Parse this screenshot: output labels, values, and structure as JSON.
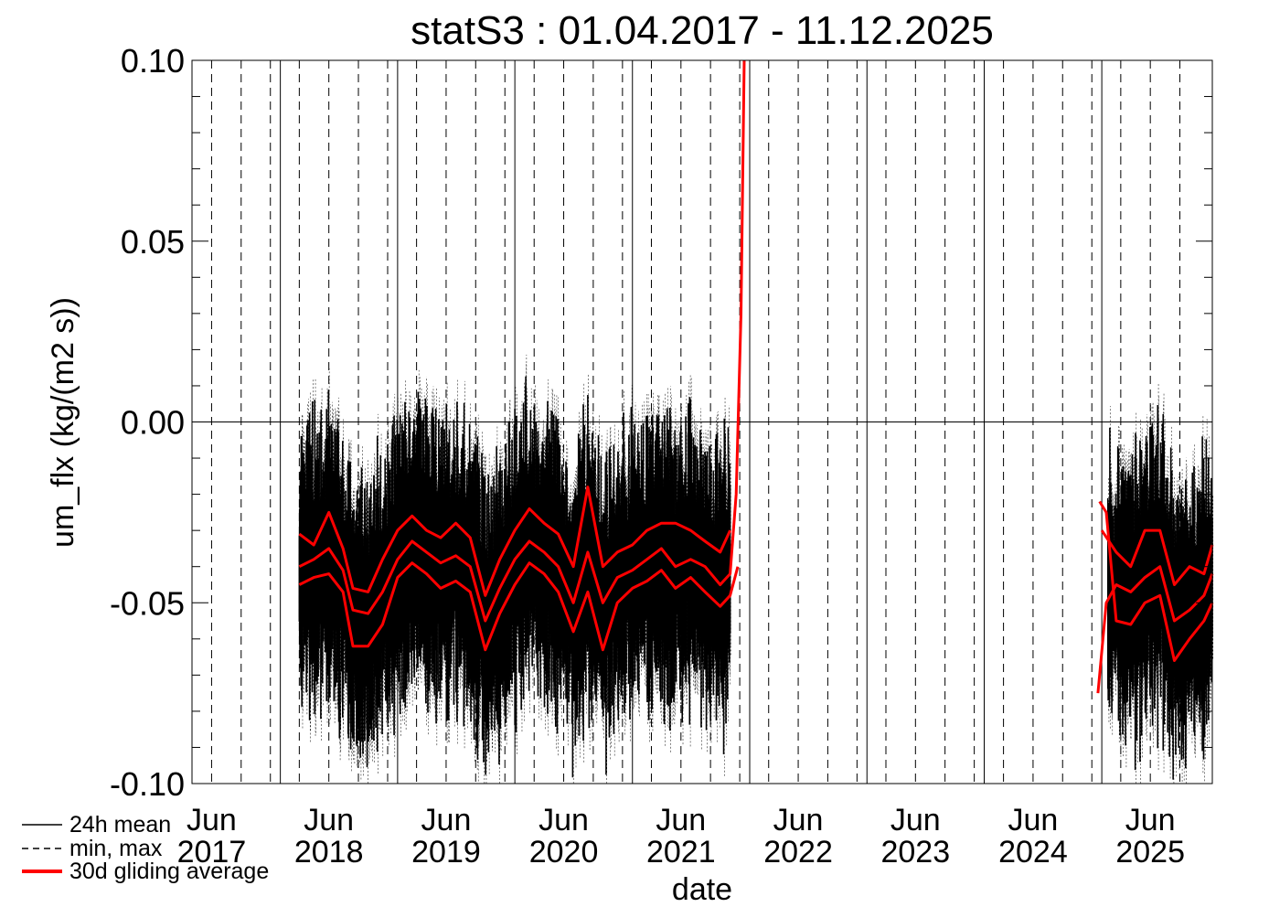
{
  "chart_data": {
    "type": "line",
    "title": "statS3 : 01.04.2017 - 11.12.2025",
    "xlabel": "date",
    "ylabel": "um_flx (kg/(m2 s))",
    "x_range": [
      "2017-04-01",
      "2025-12-11"
    ],
    "ylim": [
      -0.1,
      0.1
    ],
    "y_ticks": [
      {
        "value": 0.1,
        "label": "0.10"
      },
      {
        "value": 0.05,
        "label": "0.05"
      },
      {
        "value": 0.0,
        "label": "0.00"
      },
      {
        "value": -0.05,
        "label": "-0.05"
      },
      {
        "value": -0.1,
        "label": "-0.10"
      }
    ],
    "x_ticks": [
      {
        "date": "2017-06-01",
        "month": "Jun",
        "year": "2017"
      },
      {
        "date": "2018-06-01",
        "month": "Jun",
        "year": "2018"
      },
      {
        "date": "2019-06-01",
        "month": "Jun",
        "year": "2019"
      },
      {
        "date": "2020-06-01",
        "month": "Jun",
        "year": "2020"
      },
      {
        "date": "2021-06-01",
        "month": "Jun",
        "year": "2021"
      },
      {
        "date": "2022-06-01",
        "month": "Jun",
        "year": "2022"
      },
      {
        "date": "2023-06-01",
        "month": "Jun",
        "year": "2023"
      },
      {
        "date": "2024-06-01",
        "month": "Jun",
        "year": "2024"
      },
      {
        "date": "2025-06-01",
        "month": "Jun",
        "year": "2025"
      }
    ],
    "year_boundaries": [
      "2018-01-01",
      "2019-01-01",
      "2020-01-01",
      "2021-01-01",
      "2022-01-01",
      "2023-01-01",
      "2024-01-01",
      "2025-01-01"
    ],
    "season_lines": [
      "2017-06-01",
      "2017-09-01",
      "2017-12-01",
      "2018-03-01",
      "2018-06-01",
      "2018-09-01",
      "2018-12-01",
      "2019-03-01",
      "2019-06-01",
      "2019-09-01",
      "2019-12-01",
      "2020-03-01",
      "2020-06-01",
      "2020-09-01",
      "2020-12-01",
      "2021-03-01",
      "2021-06-01",
      "2021-09-01",
      "2021-12-01",
      "2022-03-01",
      "2022-06-01",
      "2022-09-01",
      "2022-12-01",
      "2023-03-01",
      "2023-06-01",
      "2023-09-01",
      "2023-12-01",
      "2024-03-01",
      "2024-06-01",
      "2024-09-01",
      "2024-12-01",
      "2025-03-01",
      "2025-06-01",
      "2025-09-01"
    ],
    "zero_line": 0.0,
    "legend": [
      {
        "label": "24h mean",
        "style": "solid",
        "color": "#000000"
      },
      {
        "label": "min, max",
        "style": "dashed",
        "color": "#000000"
      },
      {
        "label": "30d gliding average",
        "style": "thick",
        "color": "#ff0000"
      }
    ],
    "legend_position": "bottom-left, below plot",
    "series": [
      {
        "name": "30d gliding average",
        "color": "#ff0000",
        "segments": [
          [
            [
              "2018-03-01",
              -0.04
            ],
            [
              "2018-04-15",
              -0.038
            ],
            [
              "2018-06-01",
              -0.035
            ],
            [
              "2018-07-15",
              -0.041
            ],
            [
              "2018-08-15",
              -0.052
            ],
            [
              "2018-10-01",
              -0.053
            ],
            [
              "2018-11-15",
              -0.047
            ],
            [
              "2019-01-01",
              -0.038
            ],
            [
              "2019-02-15",
              -0.033
            ],
            [
              "2019-04-01",
              -0.036
            ],
            [
              "2019-05-15",
              -0.039
            ],
            [
              "2019-07-01",
              -0.037
            ],
            [
              "2019-08-15",
              -0.04
            ],
            [
              "2019-10-01",
              -0.055
            ],
            [
              "2019-11-15",
              -0.046
            ],
            [
              "2020-01-01",
              -0.038
            ],
            [
              "2020-02-15",
              -0.033
            ],
            [
              "2020-04-01",
              -0.036
            ],
            [
              "2020-05-15",
              -0.04
            ],
            [
              "2020-07-01",
              -0.05
            ],
            [
              "2020-08-15",
              -0.036
            ],
            [
              "2020-10-01",
              -0.05
            ],
            [
              "2020-11-15",
              -0.043
            ],
            [
              "2021-01-01",
              -0.041
            ],
            [
              "2021-02-15",
              -0.038
            ],
            [
              "2021-04-01",
              -0.035
            ],
            [
              "2021-05-15",
              -0.04
            ],
            [
              "2021-07-01",
              -0.038
            ],
            [
              "2021-08-15",
              -0.04
            ],
            [
              "2021-10-01",
              -0.045
            ],
            [
              "2021-11-01",
              -0.042
            ],
            [
              "2021-11-20",
              -0.02
            ],
            [
              "2021-12-05",
              0.03
            ],
            [
              "2021-12-15",
              0.1
            ]
          ],
          [
            [
              "2024-12-20",
              -0.075
            ],
            [
              "2025-01-15",
              -0.05
            ],
            [
              "2025-02-15",
              -0.045
            ],
            [
              "2025-04-01",
              -0.047
            ],
            [
              "2025-05-15",
              -0.043
            ],
            [
              "2025-07-01",
              -0.04
            ],
            [
              "2025-08-15",
              -0.055
            ],
            [
              "2025-10-01",
              -0.052
            ],
            [
              "2025-11-15",
              -0.048
            ],
            [
              "2025-12-11",
              -0.042
            ]
          ]
        ]
      },
      {
        "name": "30d gliding average (upper band)",
        "color": "#ff0000",
        "segments": [
          [
            [
              "2018-03-01",
              -0.031
            ],
            [
              "2018-04-15",
              -0.034
            ],
            [
              "2018-06-01",
              -0.025
            ],
            [
              "2018-07-15",
              -0.035
            ],
            [
              "2018-08-15",
              -0.046
            ],
            [
              "2018-10-01",
              -0.047
            ],
            [
              "2018-11-15",
              -0.038
            ],
            [
              "2019-01-01",
              -0.03
            ],
            [
              "2019-02-15",
              -0.026
            ],
            [
              "2019-04-01",
              -0.03
            ],
            [
              "2019-05-15",
              -0.032
            ],
            [
              "2019-07-01",
              -0.028
            ],
            [
              "2019-08-15",
              -0.032
            ],
            [
              "2019-10-01",
              -0.048
            ],
            [
              "2019-11-15",
              -0.038
            ],
            [
              "2020-01-01",
              -0.03
            ],
            [
              "2020-02-15",
              -0.024
            ],
            [
              "2020-04-01",
              -0.028
            ],
            [
              "2020-05-15",
              -0.031
            ],
            [
              "2020-07-01",
              -0.04
            ],
            [
              "2020-08-15",
              -0.018
            ],
            [
              "2020-10-01",
              -0.04
            ],
            [
              "2020-11-15",
              -0.036
            ],
            [
              "2021-01-01",
              -0.034
            ],
            [
              "2021-02-15",
              -0.03
            ],
            [
              "2021-04-01",
              -0.028
            ],
            [
              "2021-05-15",
              -0.028
            ],
            [
              "2021-07-01",
              -0.03
            ],
            [
              "2021-08-15",
              -0.033
            ],
            [
              "2021-10-01",
              -0.036
            ],
            [
              "2021-11-01",
              -0.03
            ]
          ],
          [
            [
              "2025-01-01",
              -0.03
            ],
            [
              "2025-02-15",
              -0.036
            ],
            [
              "2025-04-01",
              -0.04
            ],
            [
              "2025-05-15",
              -0.03
            ],
            [
              "2025-07-01",
              -0.03
            ],
            [
              "2025-08-15",
              -0.045
            ],
            [
              "2025-10-01",
              -0.04
            ],
            [
              "2025-11-15",
              -0.042
            ],
            [
              "2025-12-11",
              -0.034
            ]
          ]
        ]
      },
      {
        "name": "30d gliding average (lower band)",
        "color": "#ff0000",
        "segments": [
          [
            [
              "2018-03-01",
              -0.045
            ],
            [
              "2018-04-15",
              -0.043
            ],
            [
              "2018-06-01",
              -0.042
            ],
            [
              "2018-07-15",
              -0.047
            ],
            [
              "2018-08-15",
              -0.062
            ],
            [
              "2018-10-01",
              -0.062
            ],
            [
              "2018-11-15",
              -0.056
            ],
            [
              "2019-01-01",
              -0.043
            ],
            [
              "2019-02-15",
              -0.039
            ],
            [
              "2019-04-01",
              -0.042
            ],
            [
              "2019-05-15",
              -0.046
            ],
            [
              "2019-07-01",
              -0.044
            ],
            [
              "2019-08-15",
              -0.047
            ],
            [
              "2019-10-01",
              -0.063
            ],
            [
              "2019-11-15",
              -0.053
            ],
            [
              "2020-01-01",
              -0.045
            ],
            [
              "2020-02-15",
              -0.039
            ],
            [
              "2020-04-01",
              -0.042
            ],
            [
              "2020-05-15",
              -0.047
            ],
            [
              "2020-07-01",
              -0.058
            ],
            [
              "2020-08-15",
              -0.047
            ],
            [
              "2020-10-01",
              -0.063
            ],
            [
              "2020-11-15",
              -0.05
            ],
            [
              "2021-01-01",
              -0.046
            ],
            [
              "2021-02-15",
              -0.044
            ],
            [
              "2021-04-01",
              -0.041
            ],
            [
              "2021-05-15",
              -0.046
            ],
            [
              "2021-07-01",
              -0.043
            ],
            [
              "2021-08-15",
              -0.047
            ],
            [
              "2021-10-01",
              -0.051
            ],
            [
              "2021-11-01",
              -0.048
            ],
            [
              "2021-11-25",
              -0.04
            ]
          ],
          [
            [
              "2024-12-25",
              -0.022
            ],
            [
              "2025-01-15",
              -0.025
            ],
            [
              "2025-02-15",
              -0.055
            ],
            [
              "2025-04-01",
              -0.056
            ],
            [
              "2025-05-15",
              -0.05
            ],
            [
              "2025-07-01",
              -0.048
            ],
            [
              "2025-08-15",
              -0.066
            ],
            [
              "2025-10-01",
              -0.06
            ],
            [
              "2025-11-15",
              -0.055
            ],
            [
              "2025-12-11",
              -0.05
            ]
          ]
        ]
      }
    ]
  }
}
